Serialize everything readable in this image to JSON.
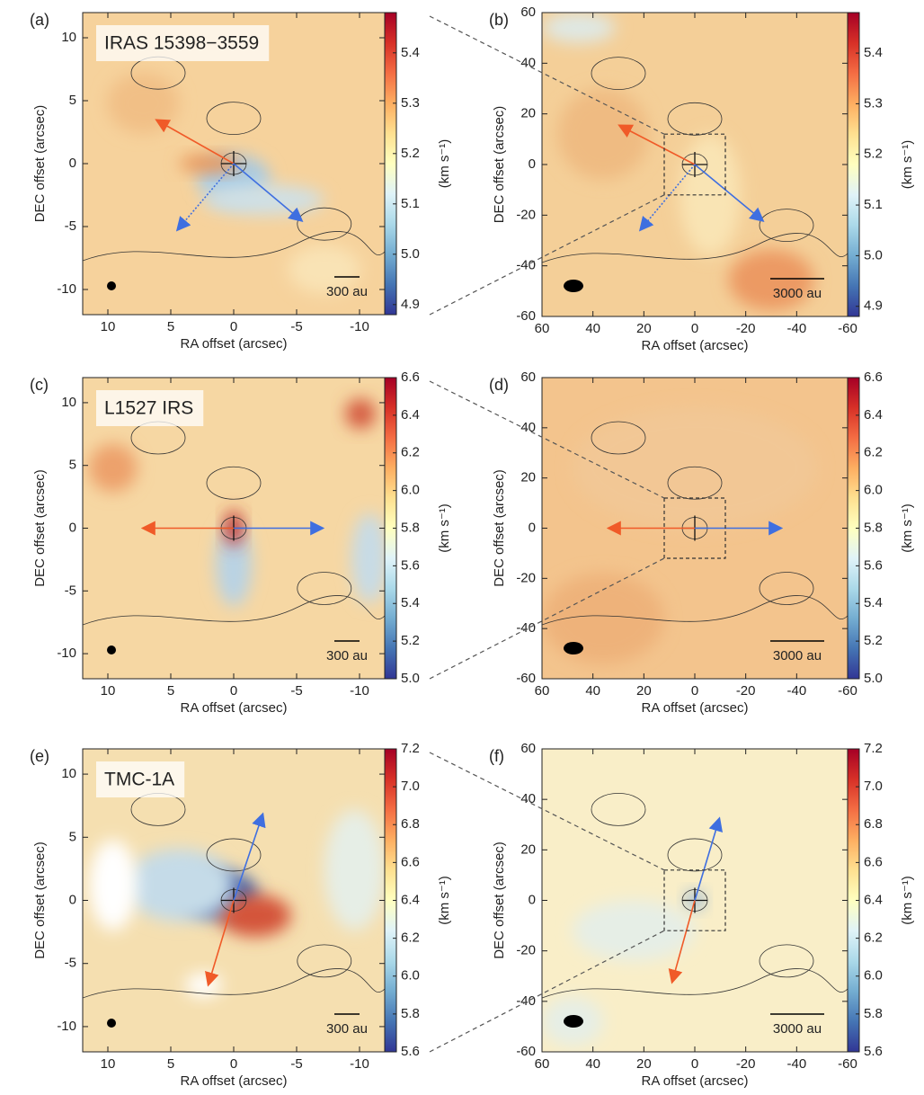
{
  "chart_data": [
    {
      "type": "map",
      "panel_label": "(a)",
      "source": "IRAS 15398−3559",
      "xlabel": "RA offset (arcsec)",
      "ylabel": "DEC offset (arcsec)",
      "xlim": [
        12,
        -12
      ],
      "ylim": [
        -12,
        12
      ],
      "xticks": [
        10,
        5,
        0,
        -5,
        -10
      ],
      "yticks": [
        -10,
        -5,
        0,
        5,
        10
      ],
      "scale_bar": "300 au",
      "colorbar": {
        "label": "(km s⁻¹)",
        "lim": [
          4.88,
          5.48
        ],
        "ticks": [
          4.9,
          {
            "value": 5,
            "label": "5.0"
          },
          5.1,
          5.2,
          5.3,
          5.4
        ],
        "colormap": [
          "#313695",
          "#4575b4",
          "#74add1",
          "#abd9e9",
          "#e0f3f8",
          "#ffffbf",
          "#fee090",
          "#fdae61",
          "#f46d43",
          "#d73027",
          "#a50026"
        ]
      }
    },
    {
      "type": "map",
      "panel_label": "(b)",
      "xlabel": "RA offset (arcsec)",
      "ylabel": "DEC offset (arcsec)",
      "xlim": [
        60,
        -60
      ],
      "ylim": [
        -60,
        60
      ],
      "xticks": [
        60,
        40,
        20,
        0,
        -20,
        -40,
        -60
      ],
      "yticks": [
        -60,
        -40,
        -20,
        0,
        20,
        40,
        60
      ],
      "scale_bar": "3000 au",
      "colorbar": {
        "label": "(km s⁻¹)",
        "lim": [
          4.88,
          5.48
        ],
        "ticks": [
          4.9,
          {
            "value": 5,
            "label": "5.0"
          },
          5.1,
          5.2,
          5.3,
          5.4
        ],
        "colormap": [
          "#313695",
          "#4575b4",
          "#74add1",
          "#abd9e9",
          "#e0f3f8",
          "#ffffbf",
          "#fee090",
          "#fdae61",
          "#f46d43",
          "#d73027",
          "#a50026"
        ]
      }
    },
    {
      "type": "map",
      "panel_label": "(c)",
      "source": "L1527 IRS",
      "xlabel": "RA offset (arcsec)",
      "ylabel": "DEC offset (arcsec)",
      "xlim": [
        12,
        -12
      ],
      "ylim": [
        -12,
        12
      ],
      "xticks": [
        10,
        5,
        0,
        -5,
        -10
      ],
      "yticks": [
        -10,
        -5,
        0,
        5,
        10
      ],
      "scale_bar": "300 au",
      "colorbar": {
        "label": "(km s⁻¹)",
        "lim": [
          5.0,
          6.6
        ],
        "ticks": [
          {
            "value": 5,
            "label": "5.0"
          },
          5.2,
          5.4,
          5.6,
          5.8,
          {
            "value": 6,
            "label": "6.0"
          },
          6.2,
          6.4,
          6.6
        ],
        "colormap": [
          "#313695",
          "#4575b4",
          "#74add1",
          "#abd9e9",
          "#e0f3f8",
          "#ffffbf",
          "#fee090",
          "#fdae61",
          "#f46d43",
          "#d73027",
          "#a50026"
        ]
      }
    },
    {
      "type": "map",
      "panel_label": "(d)",
      "xlabel": "RA offset (arcsec)",
      "ylabel": "DEC offset (arcsec)",
      "xlim": [
        60,
        -60
      ],
      "ylim": [
        -60,
        60
      ],
      "xticks": [
        60,
        40,
        20,
        0,
        -20,
        -40,
        -60
      ],
      "yticks": [
        -60,
        -40,
        -20,
        0,
        20,
        40,
        60
      ],
      "scale_bar": "3000 au",
      "colorbar": {
        "label": "(km s⁻¹)",
        "lim": [
          5.0,
          6.6
        ],
        "ticks": [
          {
            "value": 5,
            "label": "5.0"
          },
          5.2,
          5.4,
          5.6,
          5.8,
          {
            "value": 6,
            "label": "6.0"
          },
          6.2,
          6.4,
          6.6
        ],
        "colormap": [
          "#313695",
          "#4575b4",
          "#74add1",
          "#abd9e9",
          "#e0f3f8",
          "#ffffbf",
          "#fee090",
          "#fdae61",
          "#f46d43",
          "#d73027",
          "#a50026"
        ]
      }
    },
    {
      "type": "map",
      "panel_label": "(e)",
      "source": "TMC-1A",
      "xlabel": "RA offset (arcsec)",
      "ylabel": "DEC offset (arcsec)",
      "xlim": [
        12,
        -12
      ],
      "ylim": [
        -12,
        12
      ],
      "xticks": [
        10,
        5,
        0,
        -5,
        -10
      ],
      "yticks": [
        -10,
        -5,
        0,
        5,
        10
      ],
      "scale_bar": "300 au",
      "colorbar": {
        "label": "(km s⁻¹)",
        "lim": [
          5.6,
          7.2
        ],
        "ticks": [
          5.6,
          5.8,
          {
            "value": 6,
            "label": "6.0"
          },
          6.2,
          6.4,
          6.6,
          6.8,
          {
            "value": 7,
            "label": "7.0"
          },
          7.2
        ],
        "colormap": [
          "#313695",
          "#4575b4",
          "#74add1",
          "#abd9e9",
          "#e0f3f8",
          "#ffffbf",
          "#fee090",
          "#fdae61",
          "#f46d43",
          "#d73027",
          "#a50026"
        ]
      }
    },
    {
      "type": "map",
      "panel_label": "(f)",
      "xlabel": "RA offset (arcsec)",
      "ylabel": "DEC offset (arcsec)",
      "xlim": [
        60,
        -60
      ],
      "ylim": [
        -60,
        60
      ],
      "xticks": [
        60,
        40,
        20,
        0,
        -20,
        -40,
        -60
      ],
      "yticks": [
        -60,
        -40,
        -20,
        0,
        20,
        40,
        60
      ],
      "scale_bar": "3000 au",
      "colorbar": {
        "label": "(km s⁻¹)",
        "lim": [
          5.6,
          7.2
        ],
        "ticks": [
          5.6,
          5.8,
          {
            "value": 6,
            "label": "6.0"
          },
          6.2,
          6.4,
          6.6,
          6.8,
          {
            "value": 7,
            "label": "7.0"
          },
          7.2
        ],
        "colormap": [
          "#313695",
          "#4575b4",
          "#74add1",
          "#abd9e9",
          "#e0f3f8",
          "#ffffbf",
          "#fee090",
          "#fdae61",
          "#f46d43",
          "#d73027",
          "#a50026"
        ]
      }
    }
  ]
}
